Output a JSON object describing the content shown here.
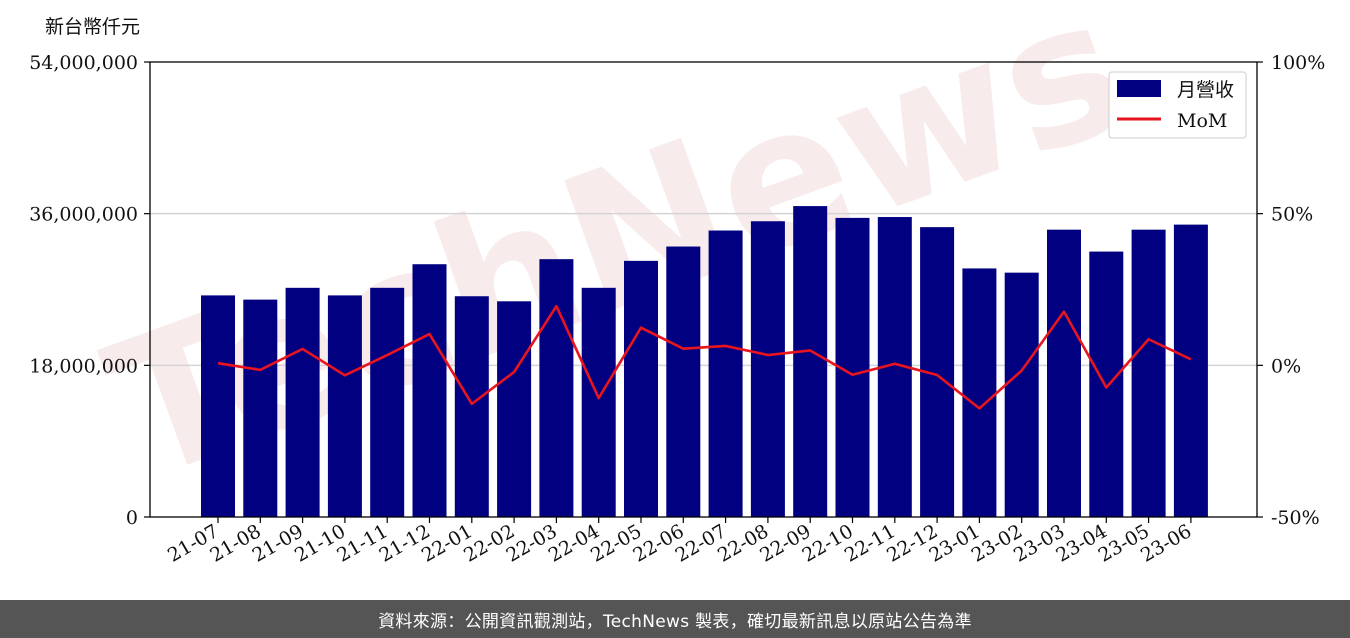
{
  "chart_data": {
    "type": "bar",
    "unit_label": "新台幣仟元",
    "categories": [
      "21-07",
      "21-08",
      "21-09",
      "21-10",
      "21-11",
      "21-12",
      "22-01",
      "22-02",
      "22-03",
      "22-04",
      "22-05",
      "22-06",
      "22-07",
      "22-08",
      "22-09",
      "22-10",
      "22-11",
      "22-12",
      "23-01",
      "23-02",
      "23-03",
      "23-04",
      "23-05",
      "23-06"
    ],
    "series": [
      {
        "name": "月營收",
        "axis": "left",
        "kind": "bar",
        "color": "#000080",
        "values": [
          26300000,
          25800000,
          27200000,
          26300000,
          27200000,
          30000000,
          26200000,
          25600000,
          30600000,
          27200000,
          30400000,
          32100000,
          34000000,
          35100000,
          36900000,
          35500000,
          35600000,
          34400000,
          29500000,
          29000000,
          34100000,
          31500000,
          34100000,
          34700000
        ]
      },
      {
        "name": "MoM",
        "axis": "right",
        "kind": "line",
        "color": "#e8141e",
        "values": [
          0.7,
          -1.5,
          5.4,
          -3.3,
          3.4,
          10.3,
          -12.7,
          -2.2,
          19.5,
          -10.8,
          12.4,
          5.5,
          6.4,
          3.4,
          4.9,
          -3.1,
          0.5,
          -3.2,
          -14.2,
          -1.7,
          17.7,
          -7.3,
          8.6,
          2.0
        ]
      }
    ],
    "left_axis": {
      "min": 0,
      "max": 54000000,
      "ticks": [
        0,
        18000000,
        36000000,
        54000000
      ],
      "tick_labels": [
        "0",
        "18,000,000",
        "36,000,000",
        "54,000,000"
      ]
    },
    "right_axis": {
      "min": -50,
      "max": 100,
      "ticks": [
        -50,
        0,
        50,
        100
      ],
      "tick_labels": [
        "-50%",
        "0%",
        "50%",
        "100%"
      ]
    },
    "grid": "horizontal",
    "legend_position": "top-right",
    "watermark": "TechNews"
  },
  "footer": {
    "text": "資料來源：公開資訊觀測站，TechNews 製表，確切最新訊息以原站公告為準"
  }
}
